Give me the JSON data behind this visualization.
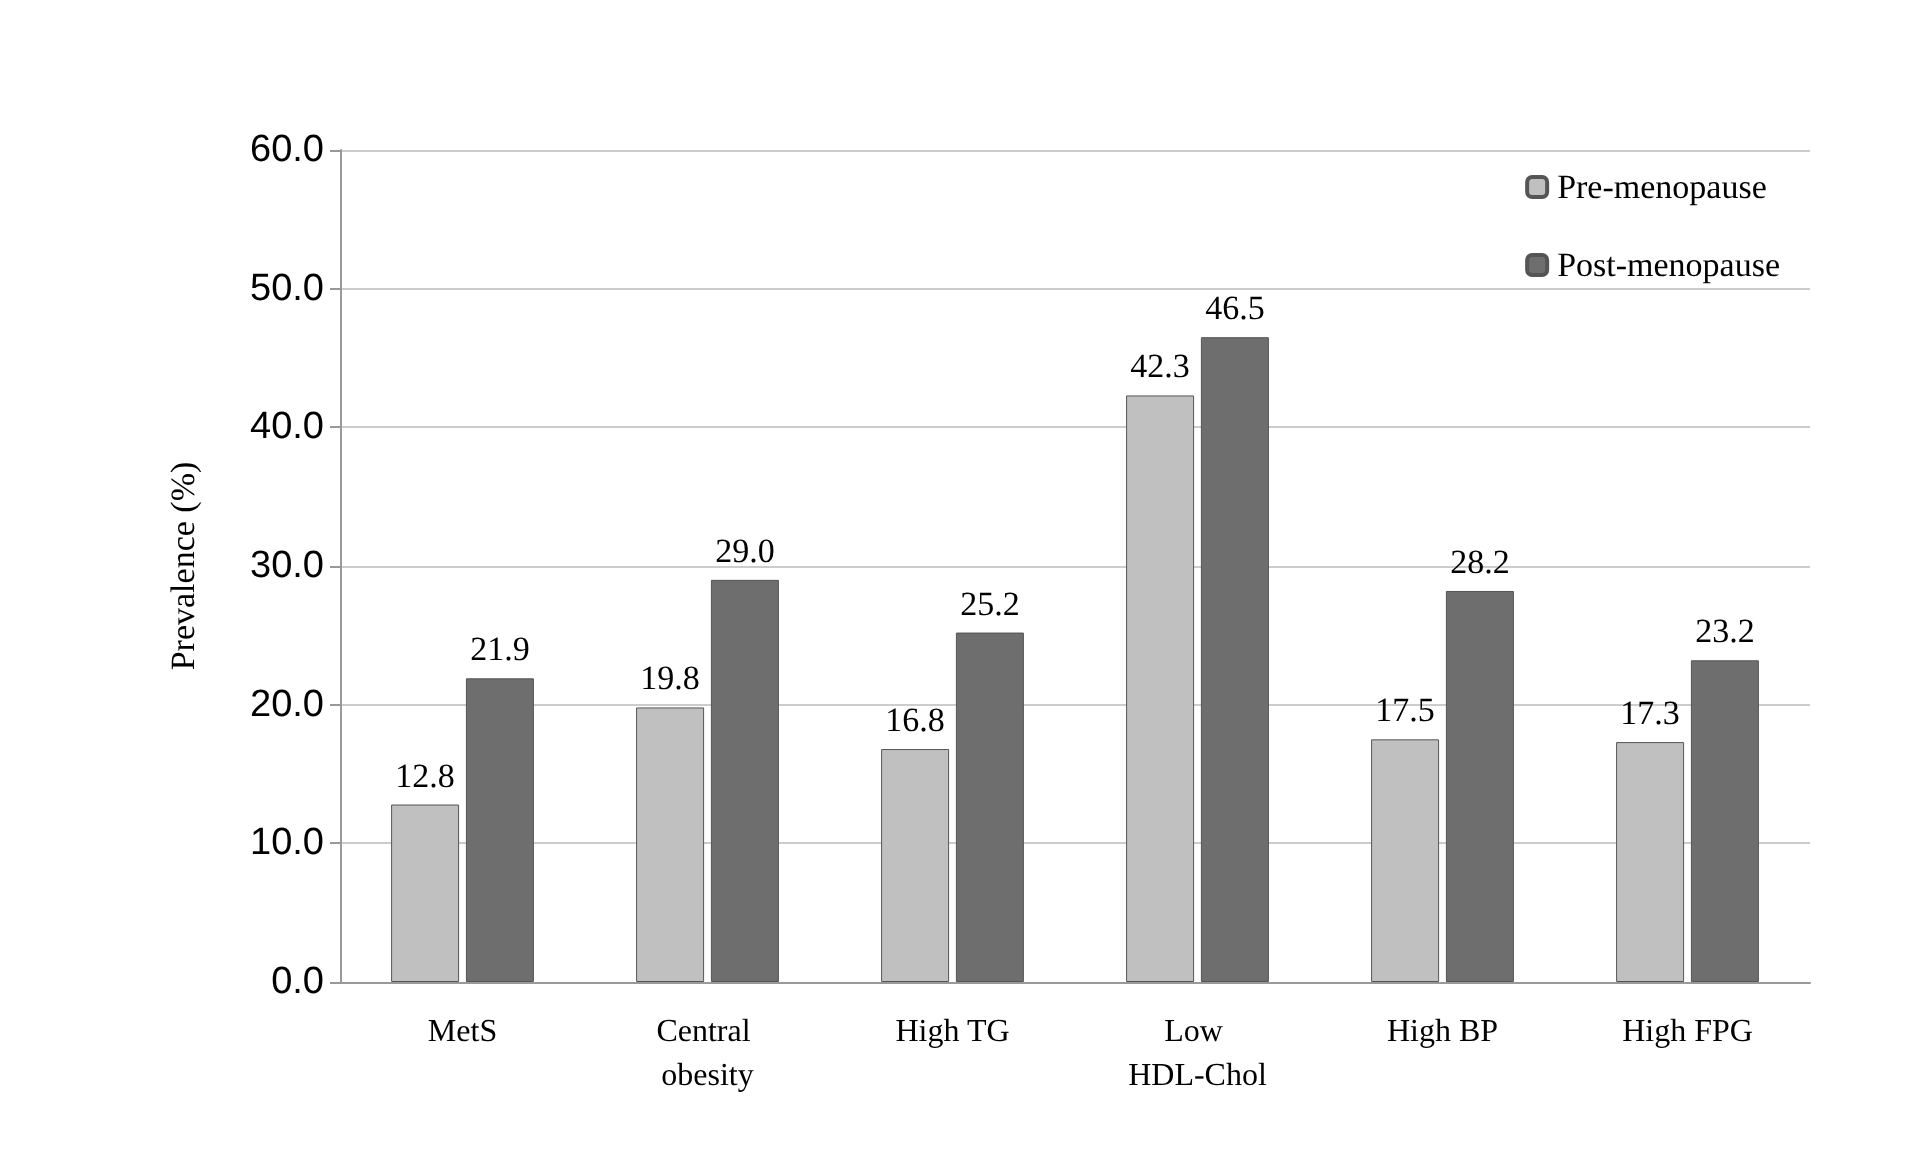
{
  "chart_data": {
    "type": "bar",
    "ylabel": "Prevalence (%)",
    "categories": [
      "MetS",
      "Central obesity",
      "High TG",
      "Low HDL-Chol",
      "High BP",
      "High FPG"
    ],
    "series": [
      {
        "name": "Pre-menopause",
        "color": "#c0c0c0",
        "values": [
          12.8,
          19.8,
          16.8,
          42.3,
          17.5,
          17.3
        ],
        "value_labels": [
          "12.8",
          "19.8",
          "16.8",
          "42.3",
          "17.5",
          "17.3"
        ]
      },
      {
        "name": "Post-menopause",
        "color": "#6e6e6e",
        "values": [
          21.9,
          29.0,
          25.2,
          46.5,
          28.2,
          23.2
        ],
        "value_labels": [
          "21.9",
          "29.0",
          "25.2",
          "46.5",
          "28.2",
          "23.2"
        ]
      }
    ],
    "ylim": [
      0,
      60
    ],
    "yticks": [
      {
        "value": 0,
        "label": "0.0"
      },
      {
        "value": 10,
        "label": "10.0"
      },
      {
        "value": 20,
        "label": "20.0"
      },
      {
        "value": 30,
        "label": "30.0"
      },
      {
        "value": 40,
        "label": "40.0"
      },
      {
        "value": 50,
        "label": "50.0"
      },
      {
        "value": 60,
        "label": "60.0"
      }
    ],
    "grid": "y",
    "legend": "top right"
  }
}
